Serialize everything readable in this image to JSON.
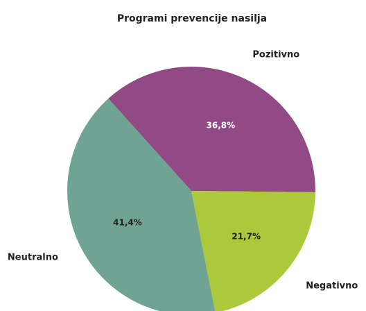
{
  "chart_data": {
    "type": "pie",
    "title": "Programi prevencije nasilja",
    "categories": [
      "Pozitivno",
      "Negativno",
      "Neutralno"
    ],
    "values": [
      36.8,
      21.7,
      41.4
    ],
    "value_labels": [
      "36,8%",
      "21,7%",
      "41,4%"
    ],
    "colors": [
      "#914a84",
      "#abc93a",
      "#6fa393"
    ]
  }
}
